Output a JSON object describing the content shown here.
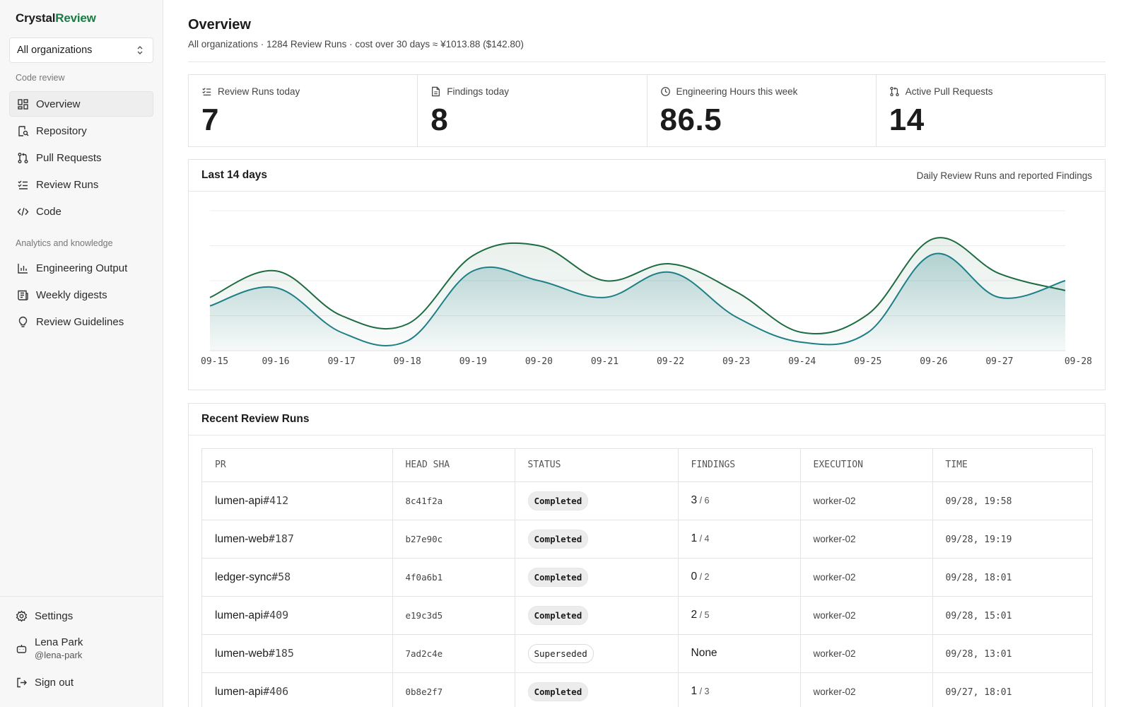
{
  "brand": {
    "part1": "Crystal",
    "part2": "Review"
  },
  "org_select": {
    "value": "All organizations"
  },
  "sidebar": {
    "section1": "Code review",
    "section2": "Analytics and knowledge",
    "items": [
      {
        "label": "Overview",
        "icon": "dashboard-icon"
      },
      {
        "label": "Repository",
        "icon": "repository-icon"
      },
      {
        "label": "Pull Requests",
        "icon": "pull-request-icon"
      },
      {
        "label": "Review Runs",
        "icon": "checklist-icon"
      },
      {
        "label": "Code",
        "icon": "code-icon"
      },
      {
        "label": "Engineering Output",
        "icon": "bar-chart-icon"
      },
      {
        "label": "Weekly digests",
        "icon": "digest-icon"
      },
      {
        "label": "Review Guidelines",
        "icon": "lightbulb-icon"
      }
    ],
    "settings": "Settings",
    "user": {
      "name": "Lena Park",
      "handle": "@lena-park"
    },
    "signout": "Sign out"
  },
  "header": {
    "title": "Overview",
    "subtitle": "All organizations · 1284 Review Runs · cost over 30 days ≈ ¥1013.88  ($142.80)"
  },
  "stats": [
    {
      "label": "Review Runs today",
      "value": "7",
      "icon": "checklist-icon"
    },
    {
      "label": "Findings today",
      "value": "8",
      "icon": "document-icon"
    },
    {
      "label": "Engineering Hours this week",
      "value": "86.5",
      "icon": "clock-icon"
    },
    {
      "label": "Active Pull Requests",
      "value": "14",
      "icon": "pull-request-icon"
    }
  ],
  "chart_card": {
    "title": "Last 14 days",
    "note": "Daily Review Runs and reported Findings"
  },
  "chart_data": {
    "type": "area",
    "categories": [
      "09-15",
      "09-16",
      "09-17",
      "09-18",
      "09-19",
      "09-20",
      "09-21",
      "09-22",
      "09-23",
      "09-24",
      "09-25",
      "09-26",
      "09-27",
      "09-28"
    ],
    "ylim": [
      0,
      10
    ],
    "grid": true,
    "series": [
      {
        "values": [
          3.8,
          5.7,
          2.5,
          1.9,
          6.8,
          7.5,
          5.0,
          6.2,
          4.2,
          1.3,
          2.6,
          8.0,
          5.5,
          4.3
        ],
        "color": "#1e6b42"
      },
      {
        "values": [
          3.2,
          4.5,
          1.3,
          0.7,
          5.7,
          5.0,
          3.8,
          5.6,
          2.4,
          0.6,
          1.3,
          6.9,
          3.8,
          5.0
        ],
        "color": "#1f7f86"
      }
    ]
  },
  "runs": {
    "title": "Recent Review Runs",
    "columns": [
      "PR",
      "HEAD SHA",
      "STATUS",
      "FINDINGS",
      "EXECUTION",
      "TIME"
    ],
    "rows": [
      {
        "repo": "lumen-api",
        "num": "#412",
        "sha": "8c41f2a",
        "status": "Completed",
        "status_type": "completed",
        "f_main": "3",
        "f_sub": " / 6",
        "exec": "worker-02",
        "time": "09/28, 19:58"
      },
      {
        "repo": "lumen-web",
        "num": "#187",
        "sha": "b27e90c",
        "status": "Completed",
        "status_type": "completed",
        "f_main": "1",
        "f_sub": " / 4",
        "exec": "worker-02",
        "time": "09/28, 19:19"
      },
      {
        "repo": "ledger-sync",
        "num": "#58",
        "sha": "4f0a6b1",
        "status": "Completed",
        "status_type": "completed",
        "f_main": "0",
        "f_sub": " / 2",
        "exec": "worker-02",
        "time": "09/28, 18:01"
      },
      {
        "repo": "lumen-api",
        "num": "#409",
        "sha": "e19c3d5",
        "status": "Completed",
        "status_type": "completed",
        "f_main": "2",
        "f_sub": " / 5",
        "exec": "worker-02",
        "time": "09/28, 15:01"
      },
      {
        "repo": "lumen-web",
        "num": "#185",
        "sha": "7ad2c4e",
        "status": "Superseded",
        "status_type": "superseded",
        "f_main": "None",
        "f_sub": "",
        "exec": "worker-02",
        "time": "09/28, 13:01"
      },
      {
        "repo": "lumen-api",
        "num": "#406",
        "sha": "0b8e2f7",
        "status": "Completed",
        "status_type": "completed",
        "f_main": "1",
        "f_sub": " / 3",
        "exec": "worker-02",
        "time": "09/27, 18:01"
      }
    ]
  }
}
